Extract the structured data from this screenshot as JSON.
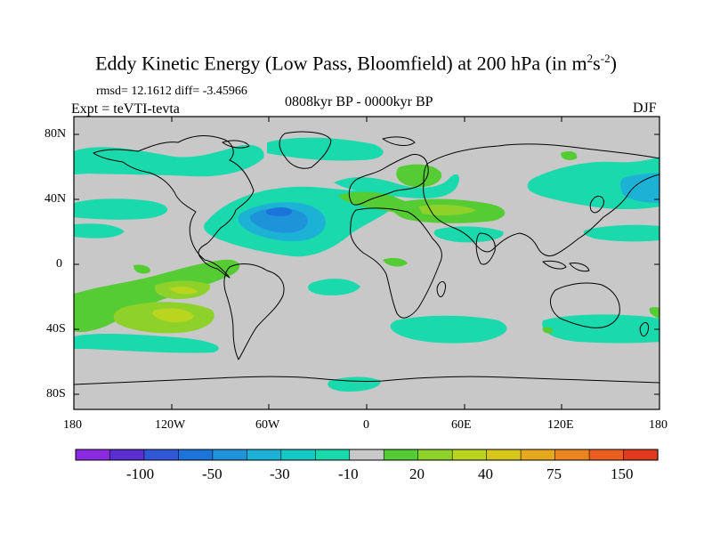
{
  "title": {
    "main": "Eddy Kinetic Energy (Low Pass, Bloomfield) at 200 hPa (in m",
    "sup1": "2",
    "mid": "s",
    "sup2": "-2",
    "end": ")"
  },
  "stats": "rmsd= 12.1612  diff= -3.45966",
  "experiment": "Expt = teVTI-tevta",
  "period": "0808kyr BP - 0000kyr BP",
  "season": "DJF",
  "map": {
    "lat_labels": [
      "80N",
      "40N",
      "0",
      "40S",
      "80S"
    ],
    "lon_labels": [
      "180",
      "120W",
      "60W",
      "0",
      "60E",
      "120E",
      "180"
    ]
  },
  "colorbar": {
    "labels": [
      "-100",
      "-50",
      "-30",
      "-10",
      "20",
      "40",
      "75",
      "150"
    ],
    "colors": [
      "#8a2be2",
      "#5a2ed0",
      "#2f57d8",
      "#1a74d9",
      "#1f93da",
      "#1cb2d6",
      "#17c9c4",
      "#1ad9ac",
      "#c8c8c8",
      "#55cc33",
      "#8dd12a",
      "#b9d51f",
      "#d6c51b",
      "#e6a81c",
      "#ec8520",
      "#ea5f20",
      "#e03a1e"
    ]
  },
  "colors": {
    "land_background": "#c8c8c8",
    "coastline": "#000000"
  }
}
